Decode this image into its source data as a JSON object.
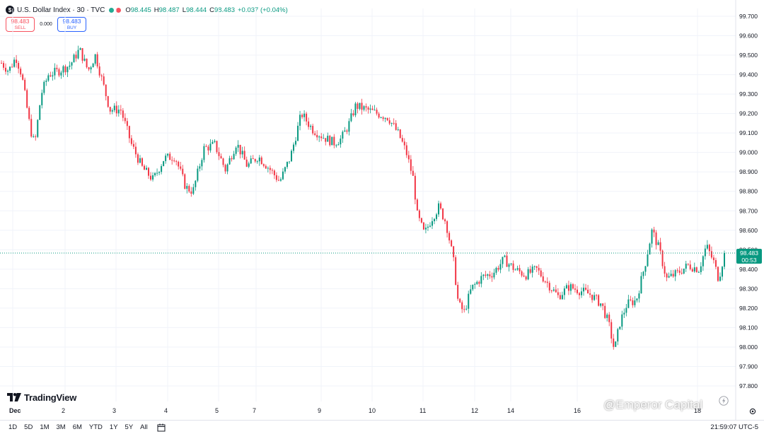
{
  "header": {
    "symbol_letter": "$",
    "title": "U.S. Dollar Index · 30 · TVC",
    "ohlc": {
      "o_label": "O",
      "o_value": "98.445",
      "h_label": "H",
      "h_value": "98.487",
      "l_label": "L",
      "l_value": "98.444",
      "c_label": "C",
      "c_value": "98.483",
      "change": "+0.037 (+0.04%)"
    }
  },
  "trade": {
    "sell_price": "98.483",
    "sell_label": "SELL",
    "spread": "0.000",
    "buy_price": "98.483",
    "buy_label": "BUY"
  },
  "price_tag": {
    "price": "98.483",
    "countdown": "00:53"
  },
  "brand": {
    "name": "TradingView"
  },
  "watermark": {
    "text": "@Emperor Capital"
  },
  "range_buttons": [
    "1D",
    "5D",
    "1M",
    "3M",
    "6M",
    "YTD",
    "1Y",
    "5Y",
    "All"
  ],
  "clock": "21:59:07 UTC-5",
  "colors": {
    "up": "#089981",
    "down": "#f23645",
    "accent": "#2962ff"
  },
  "chart_data": {
    "type": "candlestick",
    "title": "U.S. Dollar Index · 30 · TVC",
    "y_ticks": [
      "99.700",
      "99.600",
      "99.500",
      "99.400",
      "99.300",
      "99.200",
      "99.100",
      "99.000",
      "98.900",
      "98.800",
      "98.700",
      "98.600",
      "98.500",
      "98.400",
      "98.300",
      "98.200",
      "98.100",
      "98.000",
      "97.900",
      "97.800"
    ],
    "ylim": [
      97.76,
      99.72
    ],
    "x_ticks": [
      "Dec",
      "2",
      "3",
      "4",
      "5",
      "7",
      "9",
      "10",
      "11",
      "12",
      "14",
      "16",
      "18"
    ],
    "last_price": 98.483,
    "grid": true,
    "series_path": [
      [
        0.0,
        99.46
      ],
      [
        0.01,
        99.42
      ],
      [
        0.02,
        99.49
      ],
      [
        0.028,
        99.4
      ],
      [
        0.04,
        99.12
      ],
      [
        0.046,
        99.04
      ],
      [
        0.055,
        99.3
      ],
      [
        0.065,
        99.4
      ],
      [
        0.08,
        99.42
      ],
      [
        0.095,
        99.45
      ],
      [
        0.108,
        99.53
      ],
      [
        0.12,
        99.42
      ],
      [
        0.13,
        99.5
      ],
      [
        0.14,
        99.36
      ],
      [
        0.15,
        99.22
      ],
      [
        0.165,
        99.22
      ],
      [
        0.18,
        99.04
      ],
      [
        0.195,
        98.92
      ],
      [
        0.21,
        98.86
      ],
      [
        0.225,
        98.97
      ],
      [
        0.24,
        98.98
      ],
      [
        0.255,
        98.82
      ],
      [
        0.265,
        98.8
      ],
      [
        0.28,
        99.02
      ],
      [
        0.295,
        99.04
      ],
      [
        0.31,
        98.91
      ],
      [
        0.325,
        99.05
      ],
      [
        0.34,
        98.93
      ],
      [
        0.355,
        98.98
      ],
      [
        0.37,
        98.92
      ],
      [
        0.385,
        98.85
      ],
      [
        0.4,
        98.98
      ],
      [
        0.415,
        99.2
      ],
      [
        0.43,
        99.12
      ],
      [
        0.445,
        99.08
      ],
      [
        0.46,
        99.05
      ],
      [
        0.47,
        99.07
      ],
      [
        0.48,
        99.14
      ],
      [
        0.49,
        99.24
      ],
      [
        0.505,
        99.22
      ],
      [
        0.52,
        99.2
      ],
      [
        0.535,
        99.18
      ],
      [
        0.55,
        99.09
      ],
      [
        0.56,
        99.0
      ],
      [
        0.57,
        98.86
      ],
      [
        0.575,
        98.68
      ],
      [
        0.585,
        98.58
      ],
      [
        0.595,
        98.66
      ],
      [
        0.605,
        98.72
      ],
      [
        0.615,
        98.64
      ],
      [
        0.625,
        98.45
      ],
      [
        0.632,
        98.22
      ],
      [
        0.64,
        98.18
      ],
      [
        0.65,
        98.3
      ],
      [
        0.665,
        98.36
      ],
      [
        0.68,
        98.38
      ],
      [
        0.695,
        98.45
      ],
      [
        0.71,
        98.4
      ],
      [
        0.725,
        98.37
      ],
      [
        0.74,
        98.4
      ],
      [
        0.755,
        98.33
      ],
      [
        0.77,
        98.26
      ],
      [
        0.785,
        98.31
      ],
      [
        0.8,
        98.29
      ],
      [
        0.815,
        98.27
      ],
      [
        0.83,
        98.22
      ],
      [
        0.84,
        98.12
      ],
      [
        0.848,
        97.98
      ],
      [
        0.855,
        98.12
      ],
      [
        0.865,
        98.22
      ],
      [
        0.878,
        98.24
      ],
      [
        0.89,
        98.42
      ],
      [
        0.9,
        98.6
      ],
      [
        0.91,
        98.5
      ],
      [
        0.92,
        98.35
      ],
      [
        0.935,
        98.38
      ],
      [
        0.95,
        98.42
      ],
      [
        0.965,
        98.4
      ],
      [
        0.975,
        98.52
      ],
      [
        0.985,
        98.44
      ],
      [
        0.992,
        98.35
      ],
      [
        1.0,
        98.48
      ]
    ]
  }
}
